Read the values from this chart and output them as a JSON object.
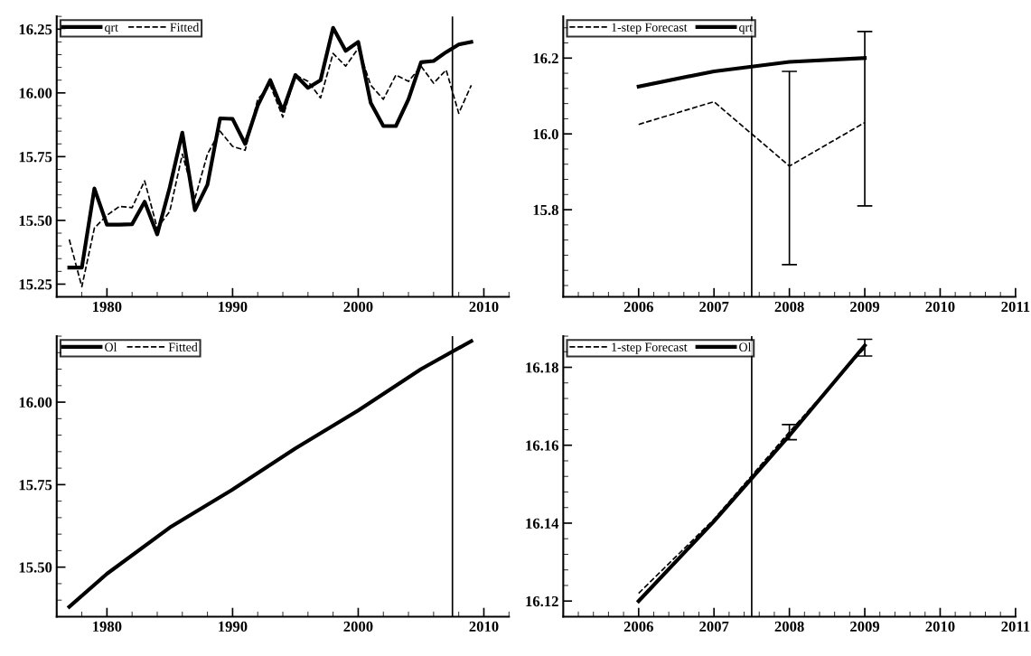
{
  "chart_data": [
    {
      "type": "line",
      "x": [
        1977,
        1978,
        1979,
        1980,
        1981,
        1982,
        1983,
        1984,
        1985,
        1986,
        1987,
        1988,
        1989,
        1990,
        1991,
        1992,
        1993,
        1994,
        1995,
        1996,
        1997,
        1998,
        1999,
        2000,
        2001,
        2002,
        2003,
        2004,
        2005,
        2006,
        2007,
        2008,
        2009
      ],
      "series": [
        {
          "name": "qrt",
          "color": "#000000",
          "line_style": "solid",
          "values": [
            15.315,
            15.315,
            15.625,
            15.483,
            15.483,
            15.485,
            15.573,
            15.445,
            15.63,
            15.844,
            15.54,
            15.64,
            15.9,
            15.898,
            15.8,
            15.95,
            16.05,
            15.93,
            16.07,
            16.02,
            16.05,
            16.255,
            16.165,
            16.2,
            15.96,
            15.87,
            15.87,
            15.975,
            16.12,
            16.125,
            16.16,
            16.19,
            16.2
          ]
        },
        {
          "name": "Fitted",
          "color": "#000000",
          "line_style": "dashed",
          "values": [
            15.425,
            15.24,
            15.47,
            15.52,
            15.555,
            15.55,
            15.655,
            15.47,
            15.535,
            15.76,
            15.585,
            15.76,
            15.85,
            15.79,
            15.775,
            15.975,
            16.03,
            15.905,
            16.07,
            16.045,
            15.98,
            16.155,
            16.105,
            16.175,
            16.03,
            15.975,
            16.07,
            16.045,
            16.105,
            16.038,
            16.09,
            15.92,
            16.03
          ]
        }
      ],
      "xlim": [
        1976,
        2012
      ],
      "xticks": [
        1980,
        1990,
        2000,
        2010
      ],
      "ylim": [
        15.2,
        16.3
      ],
      "yticks": [
        {
          "value": 15.25,
          "label": "15.25"
        },
        {
          "value": 15.5,
          "label": "15.50"
        },
        {
          "value": 15.75,
          "label": "15.75"
        },
        {
          "value": 16.0,
          "label": "16.00"
        },
        {
          "value": 16.25,
          "label": "16.25"
        }
      ],
      "ref_lines": [
        {
          "axis": "x",
          "value": 2007.5,
          "label": null,
          "color": "#000000"
        }
      ],
      "legend": "top left",
      "grid": false
    },
    {
      "type": "line",
      "x": [
        2006,
        2007,
        2008,
        2009
      ],
      "series": [
        {
          "name": "1-step Forecast",
          "color": "#000000",
          "line_style": "dashed",
          "values": [
            16.025,
            16.085,
            15.915,
            16.03
          ],
          "errors": [
            null,
            null,
            [
              15.655,
              16.165
            ],
            [
              15.81,
              16.27
            ]
          ]
        },
        {
          "name": "qrt",
          "color": "#000000",
          "line_style": "solid",
          "values": [
            16.125,
            16.165,
            16.19,
            16.2
          ]
        }
      ],
      "xlim": [
        2005,
        2011
      ],
      "xticks": [
        2006,
        2007,
        2008,
        2009,
        2010,
        2011
      ],
      "ylim": [
        15.57,
        16.31
      ],
      "yticks": [
        {
          "value": 15.8,
          "label": "15.8"
        },
        {
          "value": 16.0,
          "label": "16.0"
        },
        {
          "value": 16.2,
          "label": "16.2"
        }
      ],
      "ref_lines": [
        {
          "axis": "x",
          "value": 2007.5,
          "label": null,
          "color": "#000000"
        }
      ],
      "legend": "top left",
      "grid": false
    },
    {
      "type": "line",
      "x": [
        1977,
        1980,
        1985,
        1990,
        1995,
        2000,
        2005,
        2009
      ],
      "series": [
        {
          "name": "Ol",
          "color": "#000000",
          "line_style": "solid",
          "values": [
            15.38,
            15.48,
            15.62,
            15.735,
            15.86,
            15.975,
            16.1,
            16.185
          ]
        },
        {
          "name": "Fitted",
          "color": "#000000",
          "line_style": "dashed",
          "values": [
            null,
            null,
            null,
            null,
            null,
            null,
            null,
            null
          ]
        }
      ],
      "xlim": [
        1976,
        2012
      ],
      "xticks": [
        1980,
        1990,
        2000,
        2010
      ],
      "ylim": [
        15.35,
        16.2
      ],
      "yticks": [
        {
          "value": 15.5,
          "label": "15.50"
        },
        {
          "value": 15.75,
          "label": "15.75"
        },
        {
          "value": 16.0,
          "label": "16.00"
        }
      ],
      "ref_lines": [
        {
          "axis": "x",
          "value": 2007.5,
          "label": null,
          "color": "#000000"
        }
      ],
      "legend": "top left",
      "grid": false
    },
    {
      "type": "line",
      "x": [
        2006,
        2007,
        2008,
        2009
      ],
      "series": [
        {
          "name": "1-step Forecast",
          "color": "#000000",
          "line_style": "dashed",
          "values": [
            16.122,
            16.141,
            16.1634,
            16.185
          ],
          "errors": [
            null,
            null,
            [
              16.1614,
              16.1653
            ],
            [
              16.1829,
              16.1872
            ]
          ]
        },
        {
          "name": "Ol",
          "color": "#000000",
          "line_style": "solid",
          "values": [
            16.12,
            16.1405,
            16.1625,
            16.1856
          ]
        }
      ],
      "xlim": [
        2005,
        2011
      ],
      "xticks": [
        2006,
        2007,
        2008,
        2009,
        2010,
        2011
      ],
      "ylim": [
        16.116,
        16.188
      ],
      "yticks": [
        {
          "value": 16.12,
          "label": "16.12"
        },
        {
          "value": 16.14,
          "label": "16.14"
        },
        {
          "value": 16.16,
          "label": "16.16"
        },
        {
          "value": 16.18,
          "label": "16.18"
        }
      ],
      "ref_lines": [
        {
          "axis": "x",
          "value": 2007.5,
          "label": null,
          "color": "#000000"
        }
      ],
      "legend": "top left",
      "grid": false
    }
  ]
}
